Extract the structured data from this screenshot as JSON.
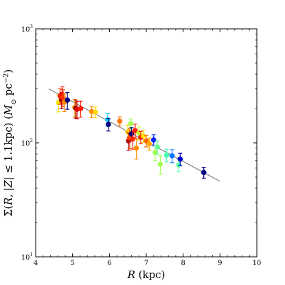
{
  "chart_data": {
    "type": "scatter",
    "title": "",
    "xlabel_parts": [
      {
        "text": "R",
        "italic": true
      },
      {
        "text": " (kpc)",
        "italic": false
      }
    ],
    "ylabel_parts": [
      {
        "text": "Σ(",
        "italic": false
      },
      {
        "text": "R",
        "italic": true
      },
      {
        "text": ", |",
        "italic": false
      },
      {
        "text": "Z",
        "italic": true
      },
      {
        "text": "| ≤ 1.1kpc) (",
        "italic": false
      },
      {
        "text": "M",
        "italic": true
      },
      {
        "text": "⊙",
        "italic": false,
        "sub": true
      },
      {
        "text": " pc",
        "italic": false
      },
      {
        "text": "−2",
        "italic": false,
        "sup": true
      },
      {
        "text": ")",
        "italic": false
      }
    ],
    "xlim": [
      4,
      10
    ],
    "ylim": [
      10,
      1000
    ],
    "yscale": "log",
    "grid": false,
    "legend": "none",
    "x_ticks": [
      4,
      5,
      6,
      7,
      8,
      9,
      10
    ],
    "x_tick_labels": [
      "4",
      "5",
      "6",
      "7",
      "8",
      "9",
      "10"
    ],
    "y_ticks": [
      10,
      100,
      1000
    ],
    "y_tick_labels": [
      {
        "base": "10",
        "exp": "1"
      },
      {
        "base": "10",
        "exp": "2"
      },
      {
        "base": "10",
        "exp": "3"
      }
    ],
    "fit_line": {
      "x": [
        4.35,
        9.0
      ],
      "y": [
        298,
        46
      ],
      "color": "#808080"
    },
    "points": [
      {
        "x": 4.62,
        "y": 225,
        "err": 38,
        "color": "#f2e600"
      },
      {
        "x": 4.66,
        "y": 258,
        "err": 40,
        "color": "#ff2a00"
      },
      {
        "x": 4.7,
        "y": 238,
        "err": 38,
        "color": "#a80000"
      },
      {
        "x": 4.72,
        "y": 265,
        "err": 45,
        "color": "#ff0000"
      },
      {
        "x": 4.74,
        "y": 250,
        "err": 42,
        "color": "#ff3300"
      },
      {
        "x": 4.78,
        "y": 228,
        "err": 40,
        "color": "#ff8800"
      },
      {
        "x": 4.86,
        "y": 237,
        "err": 40,
        "color": "#00007f"
      },
      {
        "x": 5.06,
        "y": 205,
        "err": 36,
        "color": "#ff9900"
      },
      {
        "x": 5.09,
        "y": 201,
        "err": 36,
        "color": "#800000"
      },
      {
        "x": 5.12,
        "y": 197,
        "err": 34,
        "color": "#e60000"
      },
      {
        "x": 5.22,
        "y": 200,
        "err": 32,
        "color": "#ff1a00"
      },
      {
        "x": 5.52,
        "y": 188,
        "err": 22,
        "color": "#ff8800"
      },
      {
        "x": 5.62,
        "y": 186,
        "err": 20,
        "color": "#ffd700"
      },
      {
        "x": 5.95,
        "y": 160,
        "err": 20,
        "color": "#22d3ff"
      },
      {
        "x": 5.97,
        "y": 145,
        "err": 18,
        "color": "#000080"
      },
      {
        "x": 6.28,
        "y": 155,
        "err": 14,
        "color": "#ff7700"
      },
      {
        "x": 6.5,
        "y": 125,
        "err": 18,
        "color": "#ffd000"
      },
      {
        "x": 6.52,
        "y": 104,
        "err": 18,
        "color": "#b30000"
      },
      {
        "x": 6.55,
        "y": 111,
        "err": 22,
        "color": "#ff4500"
      },
      {
        "x": 6.58,
        "y": 148,
        "err": 14,
        "color": "#a4ff52"
      },
      {
        "x": 6.6,
        "y": 120,
        "err": 16,
        "color": "#000080"
      },
      {
        "x": 6.63,
        "y": 108,
        "err": 20,
        "color": "#ff2a00"
      },
      {
        "x": 6.7,
        "y": 128,
        "err": 18,
        "color": "#ff1a00"
      },
      {
        "x": 6.73,
        "y": 90,
        "err": 18,
        "color": "#ff8c00"
      },
      {
        "x": 6.8,
        "y": 122,
        "err": 16,
        "color": "#c6ff30"
      },
      {
        "x": 6.85,
        "y": 112,
        "err": 14,
        "color": "#ff2000"
      },
      {
        "x": 6.92,
        "y": 115,
        "err": 14,
        "color": "#ffdd00"
      },
      {
        "x": 7.0,
        "y": 104,
        "err": 12,
        "color": "#ff6a00"
      },
      {
        "x": 7.08,
        "y": 98,
        "err": 12,
        "color": "#ffaa00"
      },
      {
        "x": 7.2,
        "y": 106,
        "err": 12,
        "color": "#0022ff"
      },
      {
        "x": 7.24,
        "y": 82,
        "err": 12,
        "color": "#a0ff50"
      },
      {
        "x": 7.3,
        "y": 92,
        "err": 12,
        "color": "#66ff99"
      },
      {
        "x": 7.38,
        "y": 65,
        "err": 12,
        "color": "#a6ff50"
      },
      {
        "x": 7.55,
        "y": 78,
        "err": 10,
        "color": "#44ffb2"
      },
      {
        "x": 7.7,
        "y": 77,
        "err": 10,
        "color": "#0077ff"
      },
      {
        "x": 7.88,
        "y": 64,
        "err": 8,
        "color": "#55ffa8"
      },
      {
        "x": 7.92,
        "y": 72,
        "err": 9,
        "color": "#0000cc"
      },
      {
        "x": 8.56,
        "y": 55,
        "err": 6,
        "color": "#00007f"
      }
    ]
  }
}
